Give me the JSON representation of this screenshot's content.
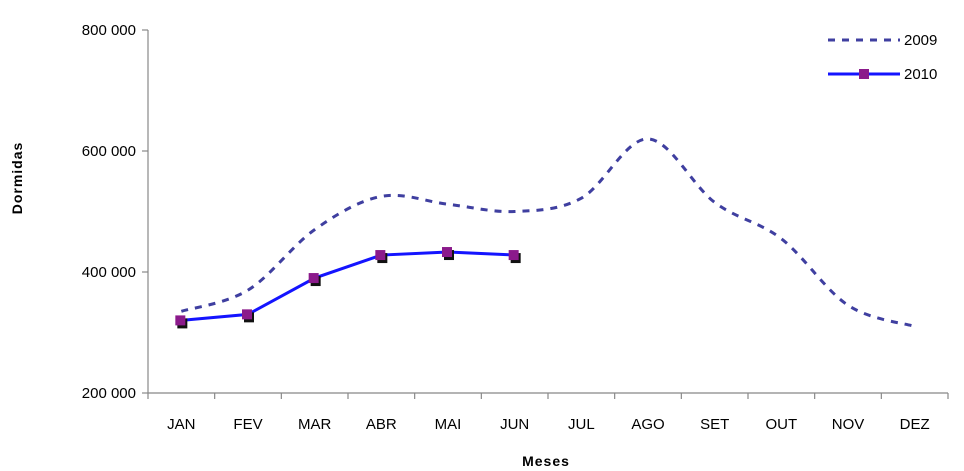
{
  "chart_data": {
    "type": "line",
    "title": "",
    "xlabel": "Meses",
    "ylabel": "Dormidas",
    "categories": [
      "JAN",
      "FEV",
      "MAR",
      "ABR",
      "MAI",
      "JUN",
      "JUL",
      "AGO",
      "SET",
      "OUT",
      "NOV",
      "DEZ"
    ],
    "ylim": [
      200000,
      800000
    ],
    "yticks": [
      200000,
      400000,
      600000,
      800000
    ],
    "ytick_labels": [
      "200 000",
      "400 000",
      "600 000",
      "800 000"
    ],
    "grid": false,
    "legend": "top-right",
    "series": [
      {
        "name": "2009",
        "style": "dashed",
        "color": "#3f3fa0",
        "values": [
          335000,
          370000,
          470000,
          525000,
          512000,
          500000,
          522000,
          620000,
          515000,
          455000,
          345000,
          310000
        ]
      },
      {
        "name": "2010",
        "style": "solid",
        "color": "#1414ff",
        "marker_color": "#8b1a8b",
        "values": [
          320000,
          330000,
          390000,
          428000,
          433000,
          428000,
          null,
          null,
          null,
          null,
          null,
          null
        ]
      }
    ]
  }
}
